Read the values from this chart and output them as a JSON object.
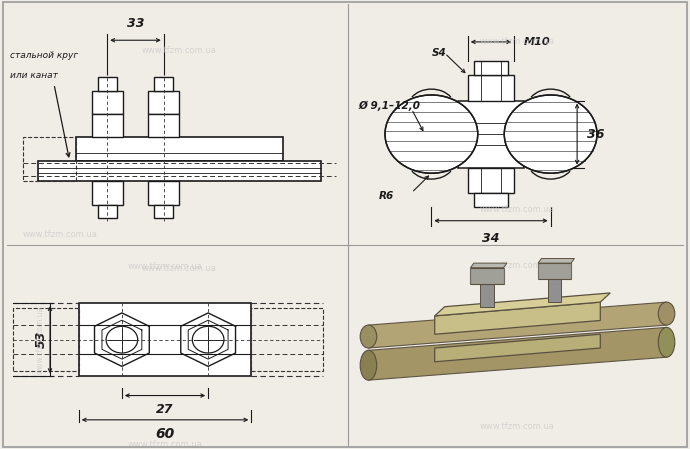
{
  "bg_color": "#f0ede6",
  "line_color": "#1a1a1a",
  "dashed_color": "#333333",
  "watermark_color": "#c8c8c8",
  "watermark_text": "www.tfzm.com.ua",
  "label_stalnoy": "стальной круг",
  "label_ili_kanat": "или канат",
  "dim_33": "33",
  "dim_27": "27",
  "dim_60": "60",
  "dim_53": "53",
  "dim_M10": "M10",
  "dim_S4": "S4",
  "dim_phi": "Ø 9,1–12,0",
  "dim_R6": "R6",
  "dim_34": "34",
  "dim_36": "36",
  "photo_bg": "#d4c9a0",
  "photo_rod_color": "#b8a878",
  "photo_clamp_color": "#c0b888",
  "photo_bolt_color": "#a0a098",
  "photo_shadow": "#8a8068"
}
